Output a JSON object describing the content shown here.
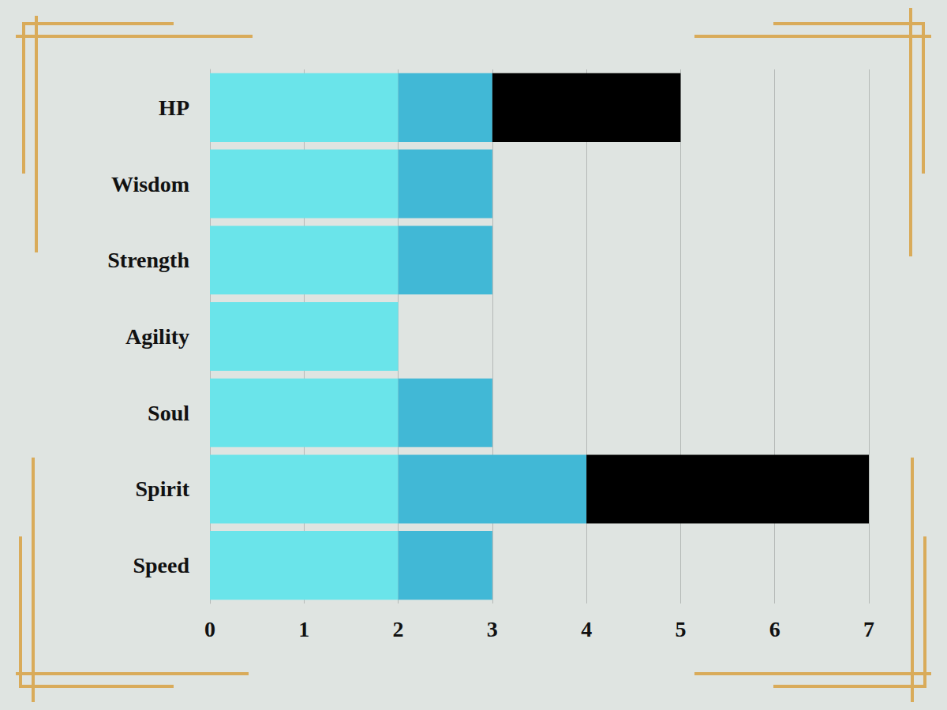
{
  "chart_data": {
    "type": "bar",
    "orientation": "horizontal",
    "stacked": true,
    "grid": true,
    "categories": [
      "HP",
      "Wisdom",
      "Strength",
      "Agility",
      "Soul",
      "Spirit",
      "Speed"
    ],
    "series": [
      {
        "color": "#6ae4ea",
        "values": [
          2,
          2,
          2,
          2,
          2,
          2,
          2
        ]
      },
      {
        "color": "#41b8d6",
        "values": [
          1,
          1,
          1,
          0,
          1,
          2,
          1
        ]
      },
      {
        "color": "#000000",
        "values": [
          2,
          0,
          0,
          0,
          0,
          3,
          0
        ]
      }
    ],
    "xlim": [
      0,
      7
    ],
    "xticks": [
      0,
      1,
      2,
      3,
      4,
      5,
      6,
      7
    ]
  }
}
